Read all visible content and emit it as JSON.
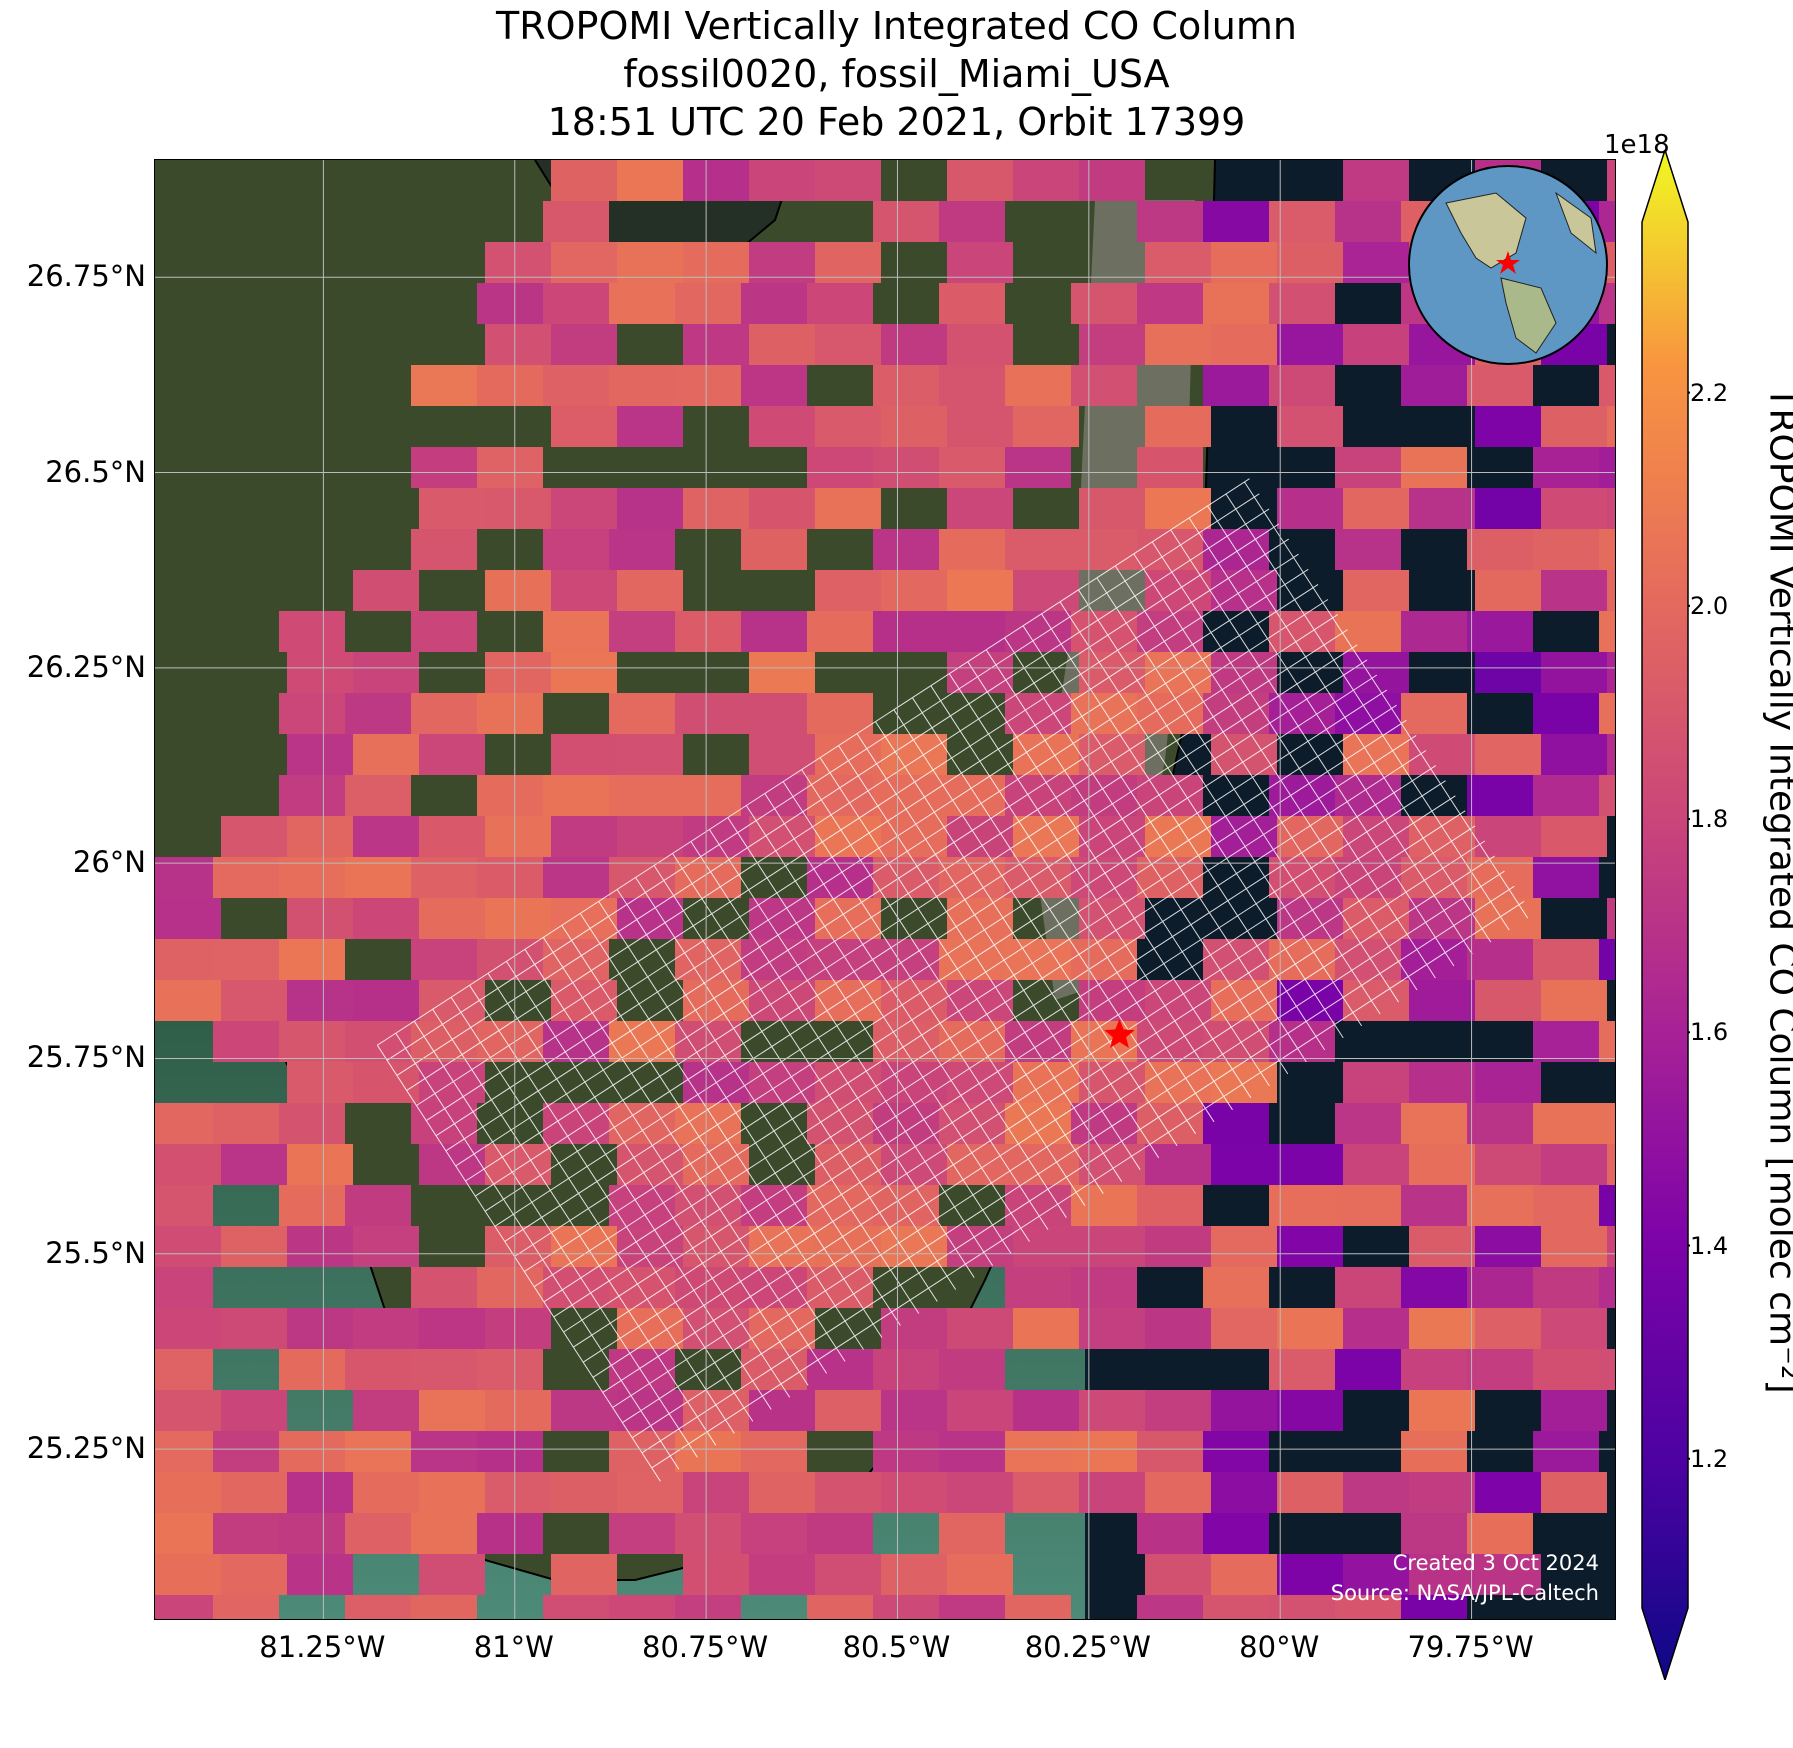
{
  "title": {
    "line1": "TROPOMI Vertically Integrated CO Column",
    "line2": "fossil0020, fossil_Miami_USA",
    "line3": "18:51 UTC 20 Feb 2021, Orbit 17399"
  },
  "map": {
    "extent": {
      "lon_min": -81.47,
      "lon_max": -79.56,
      "lat_min": 25.03,
      "lat_max": 26.9
    },
    "lat_ticks": [
      {
        "value": 26.75,
        "label": "26.75°N"
      },
      {
        "value": 26.5,
        "label": "26.5°N"
      },
      {
        "value": 26.25,
        "label": "26.25°N"
      },
      {
        "value": 26.0,
        "label": "26°N"
      },
      {
        "value": 25.75,
        "label": "25.75°N"
      },
      {
        "value": 25.5,
        "label": "25.5°N"
      },
      {
        "value": 25.25,
        "label": "25.25°N"
      }
    ],
    "lon_ticks": [
      {
        "value": -81.25,
        "label": "81.25°W"
      },
      {
        "value": -81.0,
        "label": "81°W"
      },
      {
        "value": -80.75,
        "label": "80.75°W"
      },
      {
        "value": -80.5,
        "label": "80.5°W"
      },
      {
        "value": -80.25,
        "label": "80.25°W"
      },
      {
        "value": -80.0,
        "label": "80°W"
      },
      {
        "value": -79.75,
        "label": "79.75°W"
      }
    ],
    "target_marker": {
      "name": "fossil_Miami_USA",
      "lon": -80.21,
      "lat": 25.78,
      "color": "#ff0000"
    },
    "colors": {
      "ocean": "#0c1c2b",
      "land": "#3d4a2c",
      "urban": "#8a8a80",
      "gridline": "#bbbbbb"
    }
  },
  "colorbar": {
    "exponent_label": "1e18",
    "label": "TROPOMI Vertically Integrated CO Column [molec cm⁻²]",
    "vmin": 1.06,
    "vmax": 2.36,
    "ticks": [
      {
        "value": 1.2,
        "label": "1.2"
      },
      {
        "value": 1.4,
        "label": "1.4"
      },
      {
        "value": 1.6,
        "label": "1.6"
      },
      {
        "value": 1.8,
        "label": "1.8"
      },
      {
        "value": 2.0,
        "label": "2.0"
      },
      {
        "value": 2.2,
        "label": "2.2"
      }
    ],
    "colormap": "plasma"
  },
  "inset": {
    "description_icon": "globe-icon"
  },
  "footer": {
    "created": "Created 3 Oct 2024",
    "source": "Source: NASA/JPL-Caltech"
  }
}
